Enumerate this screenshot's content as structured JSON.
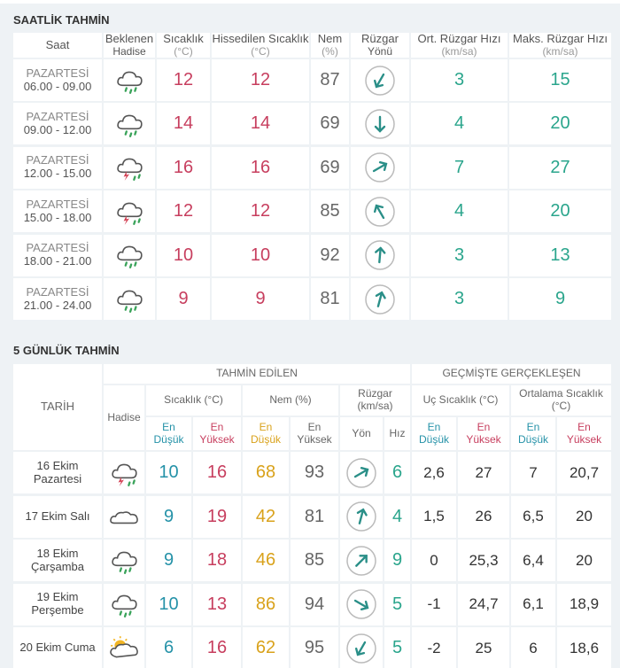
{
  "hourly": {
    "title": "SAATLİK TAHMİN",
    "headers": [
      {
        "lines": [
          "Saat"
        ]
      },
      {
        "lines": [
          "Beklenen",
          "Hadise"
        ]
      },
      {
        "lines": [
          "Sıcaklık",
          "(°C)"
        ]
      },
      {
        "lines": [
          "Hissedilen Sıcaklık",
          "(°C)"
        ]
      },
      {
        "lines": [
          "Nem",
          "(%)"
        ]
      },
      {
        "lines": [
          "Rüzgar",
          "Yönü"
        ]
      },
      {
        "lines": [
          "Ort. Rüzgar Hızı",
          "(km/sa)"
        ]
      },
      {
        "lines": [
          "Maks. Rüzgar Hızı",
          "(km/sa)"
        ]
      }
    ],
    "rows": [
      {
        "day": "PAZARTESİ",
        "time": "06.00 - 09.00",
        "temp": 12,
        "feels": 12,
        "humidity": 87,
        "wind_avg": 3,
        "wind_max": 15
      },
      {
        "day": "PAZARTESİ",
        "time": "09.00 - 12.00",
        "temp": 14,
        "feels": 14,
        "humidity": 69,
        "wind_avg": 4,
        "wind_max": 20
      },
      {
        "day": "PAZARTESİ",
        "time": "12.00 - 15.00",
        "temp": 16,
        "feels": 16,
        "humidity": 69,
        "wind_avg": 7,
        "wind_max": 27
      },
      {
        "day": "PAZARTESİ",
        "time": "15.00 - 18.00",
        "temp": 12,
        "feels": 12,
        "humidity": 85,
        "wind_avg": 4,
        "wind_max": 20
      },
      {
        "day": "PAZARTESİ",
        "time": "18.00 - 21.00",
        "temp": 10,
        "feels": 10,
        "humidity": 92,
        "wind_avg": 3,
        "wind_max": 13
      },
      {
        "day": "PAZARTESİ",
        "time": "21.00 - 24.00",
        "temp": 9,
        "feels": 9,
        "humidity": 81,
        "wind_avg": 3,
        "wind_max": 9
      }
    ]
  },
  "daily": {
    "title": "5 GÜNLÜK TAHMİN",
    "date_header": "TARİH",
    "event_header": "Hadise",
    "forecast_group": "TAHMİN EDİLEN",
    "past_group": "GEÇMİŞTE GERÇEKLEŞEN",
    "groups": [
      {
        "lines": [
          "Sıcaklık (°C)"
        ],
        "sub": [
          [
            "En",
            "Düşük"
          ],
          [
            "En",
            "Yüksek"
          ]
        ]
      },
      {
        "lines": [
          "Nem (%)"
        ],
        "sub": [
          [
            "En",
            "Düşük"
          ],
          [
            "En",
            "Yüksek"
          ]
        ]
      },
      {
        "lines": [
          "Rüzgar",
          "(km/sa)"
        ],
        "sub": [
          [
            "Yön"
          ],
          [
            "Hız"
          ]
        ]
      },
      {
        "lines": [
          "Uç Sıcaklık (°C)"
        ],
        "sub": [
          [
            "En",
            "Düşük"
          ],
          [
            "En",
            "Yüksek"
          ]
        ]
      },
      {
        "lines": [
          "Ortalama Sıcaklık",
          "(°C)"
        ],
        "sub": [
          [
            "En",
            "Düşük"
          ],
          [
            "En",
            "Yüksek"
          ]
        ]
      }
    ],
    "rows": [
      {
        "date": [
          "16 Ekim",
          "Pazartesi"
        ],
        "values": [
          10,
          16,
          68,
          93,
          null,
          6,
          "2,6",
          27,
          7,
          "20,7"
        ]
      },
      {
        "date": [
          "17 Ekim Salı"
        ],
        "values": [
          9,
          19,
          42,
          81,
          null,
          4,
          "1,5",
          26,
          "6,5",
          20
        ]
      },
      {
        "date": [
          "18 Ekim",
          "Çarşamba"
        ],
        "values": [
          9,
          18,
          46,
          85,
          null,
          9,
          0,
          "25,3",
          "6,4",
          20
        ]
      },
      {
        "date": [
          "19 Ekim",
          "Perşembe"
        ],
        "values": [
          10,
          13,
          86,
          94,
          null,
          5,
          -1,
          "24,7",
          "6,1",
          "18,9"
        ]
      },
      {
        "date": [
          "20 Ekim Cuma"
        ],
        "values": [
          6,
          16,
          62,
          95,
          null,
          5,
          -2,
          25,
          6,
          "18,6"
        ]
      }
    ]
  }
}
